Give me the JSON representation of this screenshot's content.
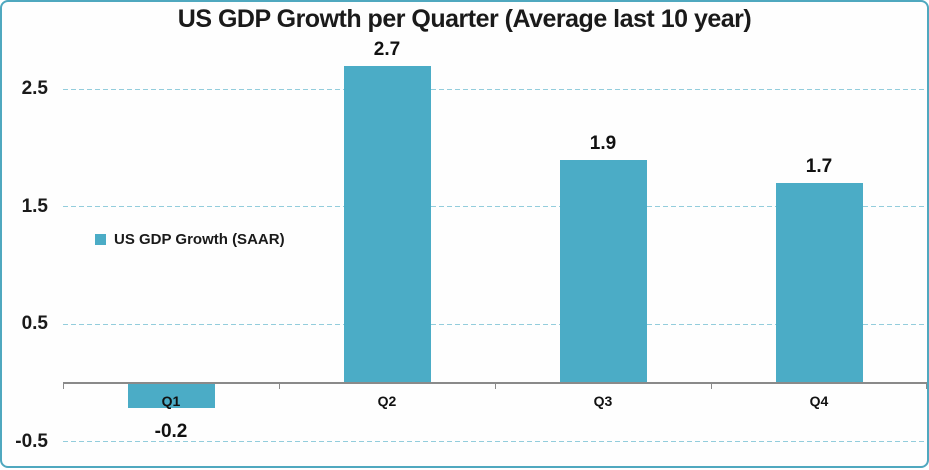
{
  "chart_data": {
    "type": "bar",
    "title": "US GDP Growth per Quarter (Average last 10 year)",
    "legend": "US GDP Growth (SAAR)",
    "legend_position": "middle-left",
    "categories": [
      "Q1",
      "Q2",
      "Q3",
      "Q4"
    ],
    "series": [
      {
        "name": "US GDP Growth (SAAR)",
        "values": [
          -0.2,
          2.7,
          1.9,
          1.7
        ]
      }
    ],
    "points": [
      {
        "category": "Q1",
        "value": -0.2,
        "label": "-0.2"
      },
      {
        "category": "Q2",
        "value": 2.7,
        "label": "2.7"
      },
      {
        "category": "Q3",
        "value": 1.9,
        "label": "1.9"
      },
      {
        "category": "Q4",
        "value": 1.7,
        "label": "1.7"
      }
    ],
    "yticks": [
      {
        "value": 2.5,
        "label": "2.5"
      },
      {
        "value": 1.5,
        "label": "1.5"
      },
      {
        "value": 0.5,
        "label": "0.5"
      },
      {
        "value": -0.5,
        "label": "-0.5"
      }
    ],
    "ylim": [
      -0.65,
      3.2
    ],
    "grid": "horizontal-dashed",
    "xlabel": "",
    "ylabel": "",
    "colors": {
      "bar": "#4bacc6",
      "gridline": "#93cddc",
      "axis": "#8a8a8a",
      "frame_border": "#4fa8bf",
      "text": "#1a1a1a"
    }
  }
}
